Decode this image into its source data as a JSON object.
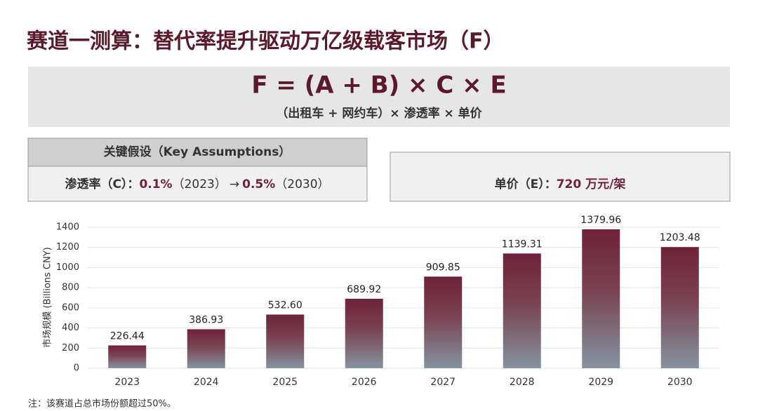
{
  "header": {
    "title": "赛道一测算：替代率提升驱动万亿级载客市场（F）"
  },
  "formula": {
    "expression": "F = (A + B) × C × E",
    "description": "（出租车 + 网约车）× 渗透率 × 单价"
  },
  "assumptions": {
    "heading": "关键假设（Key Assumptions）",
    "penetration": {
      "label": "渗透率（C）：",
      "start_value": "0.1%",
      "start_year": "（2023）",
      "arrow": "→",
      "end_value": "0.5%",
      "end_year": "（2030）"
    },
    "unit_price": {
      "label": "单价（E）：",
      "value": "720 万元/架"
    }
  },
  "chart_data": {
    "type": "bar",
    "y_label": "市场规模 (Billions CNY)",
    "categories": [
      "2023",
      "2024",
      "2025",
      "2026",
      "2027",
      "2028",
      "2029",
      "2030"
    ],
    "values": [
      226.44,
      386.93,
      532.6,
      689.92,
      909.85,
      1139.31,
      1379.96,
      1203.48
    ],
    "value_labels": [
      "226.44",
      "386.93",
      "532.60",
      "689.92",
      "909.85",
      "1139.31",
      "1379.96",
      "1203.48"
    ],
    "color": "#6e2238",
    "ylim": [
      0,
      1400
    ],
    "yticks": [
      0,
      200,
      400,
      600,
      800,
      1000,
      1200,
      1400
    ],
    "grid": true
  },
  "footnote": "注：该赛道占总市场份额超过50%。"
}
